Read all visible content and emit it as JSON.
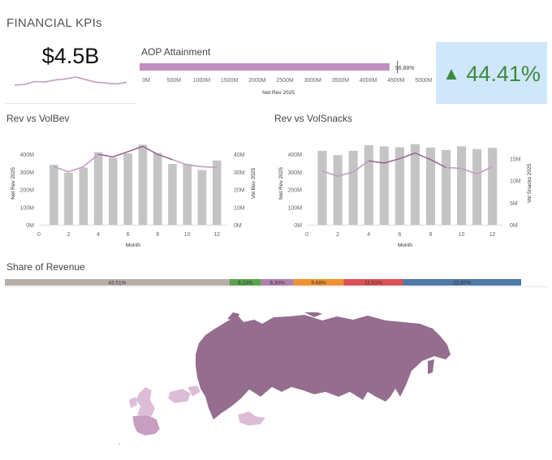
{
  "page": {
    "title": "FINANCIAL KPIs"
  },
  "kpi_net_rev": {
    "value": "$4.5B",
    "trend_values": [
      3.0,
      3.1,
      3.5,
      3.45,
      3.7,
      3.85,
      4.1,
      3.75,
      3.4,
      3.3,
      3.15,
      3.4
    ]
  },
  "aop": {
    "title": "AOP Attainment",
    "bar_label": "96.88%",
    "xlabel": "Net Rev 2025",
    "ticks": [
      "0M",
      "500M",
      "1000M",
      "1500M",
      "2000M",
      "2500M",
      "3000M",
      "3500M",
      "4000M",
      "4500M",
      "5000M"
    ],
    "value": 4500,
    "target": 4645,
    "axis_max": 5000,
    "color": "#c08fc0"
  },
  "growth": {
    "value": "44.41%",
    "icon": "triangle-up-icon",
    "color": "#3b8b3f",
    "bg": "#cfe6fb"
  },
  "share": {
    "title": "Share of Revenue",
    "segments": [
      {
        "label": "43.51%",
        "value": 43.51,
        "color": "#b9ada8"
      },
      {
        "label": "6.13%",
        "value": 6.13,
        "color": "#5aa24f"
      },
      {
        "label": "6.30%",
        "value": 6.3,
        "color": "#b081ae"
      },
      {
        "label": "9.68%",
        "value": 9.68,
        "color": "#ee9232"
      },
      {
        "label": "11.51%",
        "value": 11.51,
        "color": "#db5155"
      },
      {
        "label": "22.87%",
        "value": 22.87,
        "color": "#4f79a8"
      }
    ]
  },
  "map": {
    "colors": {
      "russia": "#946d8f",
      "light": "#dcbcd7",
      "mid": "#c79ec1"
    }
  },
  "chart_data": [
    {
      "type": "bar",
      "title": "Rev vs VolBev",
      "xlabel": "Month",
      "ylabel": "Net Rev 2025",
      "y2label": "Vol Bev 2025",
      "x": [
        1,
        2,
        3,
        4,
        5,
        6,
        7,
        8,
        9,
        10,
        11,
        12
      ],
      "x_ticks": [
        "0",
        "2",
        "4",
        "6",
        "8",
        "10",
        "12"
      ],
      "xlim": [
        0,
        12.7
      ],
      "y_ticks": [
        "0M",
        "100M",
        "200M",
        "300M",
        "400M"
      ],
      "ylim": [
        0,
        470
      ],
      "y2_ticks": [
        "0M",
        "10M",
        "20M",
        "30M",
        "40M"
      ],
      "y2lim": [
        0,
        47
      ],
      "series": [
        {
          "type": "bar",
          "color": "#c4c4c4",
          "values": [
            340,
            295,
            325,
            412,
            380,
            405,
            455,
            408,
            345,
            345,
            310,
            365
          ]
        },
        {
          "type": "line",
          "color": "#c59cc7",
          "highlight": "#8c5e88",
          "values": [
            33,
            30,
            33,
            40,
            38.5,
            41.5,
            44.5,
            40,
            37,
            34,
            33,
            32.5
          ]
        }
      ]
    },
    {
      "type": "bar",
      "title": "Rev vs VolSnacks",
      "xlabel": "Month",
      "ylabel": "Net Rev 2025",
      "y2label": "Vol Snacks 2025",
      "x": [
        1,
        2,
        3,
        4,
        5,
        6,
        7,
        8,
        9,
        10,
        11,
        12
      ],
      "x_ticks": [
        "0",
        "2",
        "4",
        "6",
        "8",
        "10",
        "12"
      ],
      "xlim": [
        0,
        12.7
      ],
      "y_ticks": [
        "0M",
        "100M",
        "200M",
        "300M",
        "400M"
      ],
      "ylim": [
        0,
        470
      ],
      "y2_ticks": [
        "0M",
        "5M",
        "10M",
        "15M"
      ],
      "y2lim": [
        0,
        18.8
      ],
      "series": [
        {
          "type": "bar",
          "color": "#c4c4c4",
          "values": [
            420,
            395,
            420,
            452,
            445,
            440,
            458,
            438,
            425,
            445,
            430,
            437
          ]
        },
        {
          "type": "line",
          "color": "#c59cc7",
          "highlight": "#8c5e88",
          "values": [
            12.2,
            11.0,
            12.0,
            14.5,
            14.0,
            15.0,
            16.3,
            14.8,
            13.0,
            12.8,
            11.5,
            13.2
          ]
        }
      ]
    }
  ]
}
